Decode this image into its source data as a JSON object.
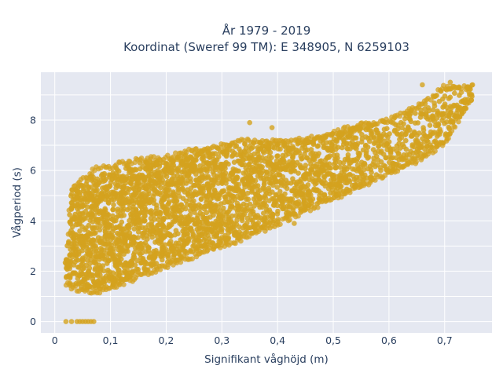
{
  "chart_data": {
    "type": "scatter",
    "title_line1": "År 1979 - 2019",
    "title_line2": "Koordinat (Sweref 99 TM): E 348905, N 6259103",
    "xlabel": "Signifikant våghöjd (m)",
    "ylabel": "Vågperiod (s)",
    "xlim": [
      -0.025,
      0.785
    ],
    "ylim": [
      -0.45,
      9.9
    ],
    "x_ticks": [
      0,
      0.1,
      0.2,
      0.3,
      0.4,
      0.5,
      0.6,
      0.7
    ],
    "x_tick_labels": [
      "0",
      "0,1",
      "0,2",
      "0,3",
      "0,4",
      "0,5",
      "0,6",
      "0,7"
    ],
    "y_ticks": [
      0,
      2,
      4,
      6,
      8
    ],
    "y_tick_labels": [
      "0",
      "2",
      "4",
      "6",
      "8"
    ],
    "grid": true,
    "marker_color": "#d4a21e",
    "plot_background": "#e5e8f1",
    "x": [
      0.02,
      0.03,
      0.04,
      0.05,
      0.06,
      0.07,
      0.08,
      0.1,
      0.12,
      0.15,
      0.2,
      0.25,
      0.3,
      0.35,
      0.4,
      0.45,
      0.5,
      0.55,
      0.6,
      0.65,
      0.7,
      0.75
    ],
    "y_min": [
      1.4,
      1.3,
      1.2,
      1.15,
      1.1,
      1.1,
      1.1,
      1.2,
      1.4,
      1.7,
      2.1,
      2.5,
      2.9,
      3.3,
      3.8,
      4.3,
      4.8,
      5.3,
      5.8,
      6.3,
      7.0,
      8.8
    ],
    "y_max": [
      2.5,
      5.4,
      5.5,
      5.7,
      5.9,
      6.1,
      6.2,
      6.2,
      6.4,
      6.5,
      6.6,
      6.9,
      7.1,
      7.3,
      7.2,
      7.3,
      7.6,
      7.9,
      8.1,
      8.6,
      9.4,
      9.4
    ],
    "zero_points_x": [
      0.02,
      0.03,
      0.04,
      0.045,
      0.05,
      0.055,
      0.06,
      0.065,
      0.07
    ],
    "zero_points_y": [
      0,
      0,
      0,
      0,
      0,
      0,
      0,
      0,
      0
    ],
    "outliers_x": [
      0.35,
      0.38,
      0.39,
      0.66,
      0.71,
      0.72,
      0.73,
      0.75,
      0.43,
      0.14
    ],
    "outliers_y": [
      7.9,
      7.0,
      7.7,
      9.4,
      9.5,
      9.3,
      9.1,
      9.4,
      3.9,
      5.8
    ]
  }
}
